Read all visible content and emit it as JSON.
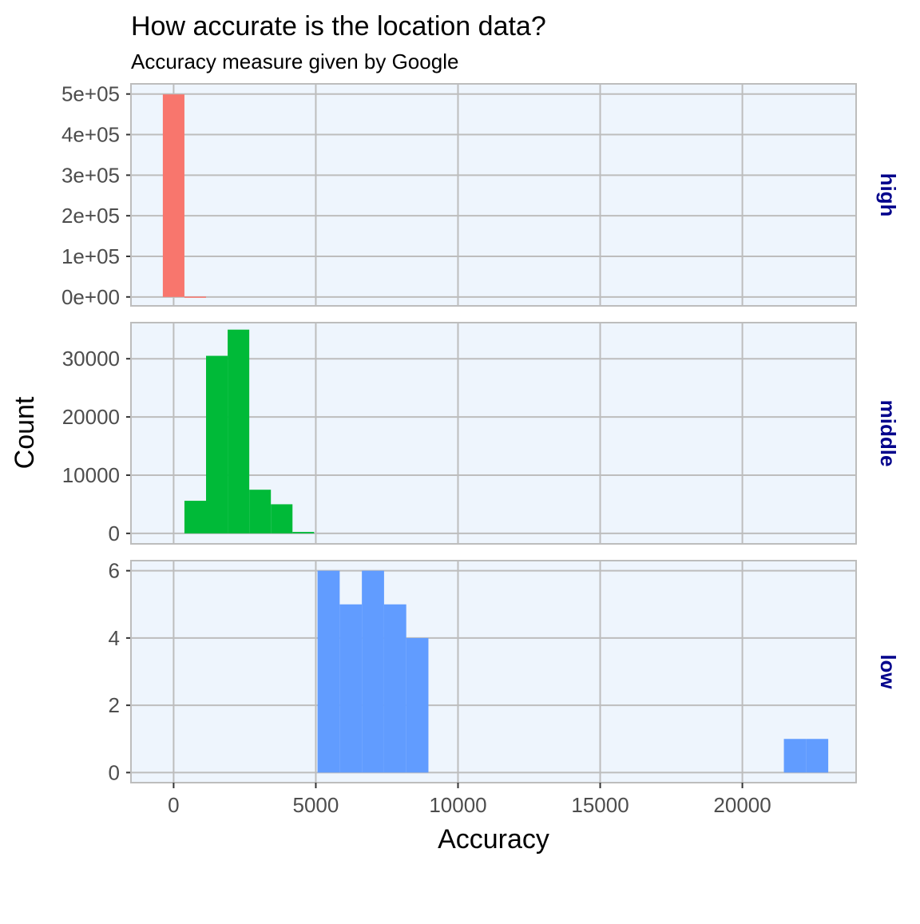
{
  "chart_data": {
    "type": "bar",
    "title": "How accurate is the location data?",
    "subtitle": "Accuracy measure given by Google",
    "xlabel": "Accuracy",
    "ylabel": "Count",
    "xlim": [
      -1500,
      24000
    ],
    "x_ticks": [
      0,
      5000,
      10000,
      15000,
      20000
    ],
    "x_tick_labels": [
      "0",
      "5000",
      "10000",
      "15000",
      "20000"
    ],
    "grid": true,
    "panel_background": "#eef5fd",
    "grid_color": "#bdbdbd",
    "strip_text_color": "#00008b",
    "panels": [
      {
        "facet": "high",
        "color": "#f8766d",
        "ylim": [
          -22000,
          525000
        ],
        "y_ticks": [
          0,
          100000,
          200000,
          300000,
          400000,
          500000
        ],
        "y_tick_labels": [
          "0e+00",
          "1e+05",
          "2e+05",
          "3e+05",
          "4e+05",
          "5e+05"
        ],
        "bins": [
          {
            "x0": -380,
            "x1": 380,
            "count": 499000
          },
          {
            "x0": 380,
            "x1": 1140,
            "count": 900
          }
        ]
      },
      {
        "facet": "middle",
        "color": "#00ba38",
        "ylim": [
          -1800,
          36200
        ],
        "y_ticks": [
          0,
          10000,
          20000,
          30000
        ],
        "y_tick_labels": [
          "0",
          "10000",
          "20000",
          "30000"
        ],
        "bins": [
          {
            "x0": 380,
            "x1": 1140,
            "count": 5600
          },
          {
            "x0": 1140,
            "x1": 1900,
            "count": 30500
          },
          {
            "x0": 1900,
            "x1": 2660,
            "count": 35000
          },
          {
            "x0": 2660,
            "x1": 3420,
            "count": 7500
          },
          {
            "x0": 3420,
            "x1": 4180,
            "count": 5000
          },
          {
            "x0": 4180,
            "x1": 4940,
            "count": 250
          }
        ]
      },
      {
        "facet": "low",
        "color": "#619cff",
        "ylim": [
          -0.3,
          6.3
        ],
        "y_ticks": [
          0,
          2,
          4,
          6
        ],
        "y_tick_labels": [
          "0",
          "2",
          "4",
          "6"
        ],
        "bins": [
          {
            "x0": 5060,
            "x1": 5840,
            "count": 6
          },
          {
            "x0": 5840,
            "x1": 6620,
            "count": 5
          },
          {
            "x0": 6620,
            "x1": 7400,
            "count": 6
          },
          {
            "x0": 7400,
            "x1": 8180,
            "count": 5
          },
          {
            "x0": 8180,
            "x1": 8960,
            "count": 4
          },
          {
            "x0": 21460,
            "x1": 22240,
            "count": 1
          },
          {
            "x0": 22240,
            "x1": 23020,
            "count": 1
          }
        ]
      }
    ]
  }
}
